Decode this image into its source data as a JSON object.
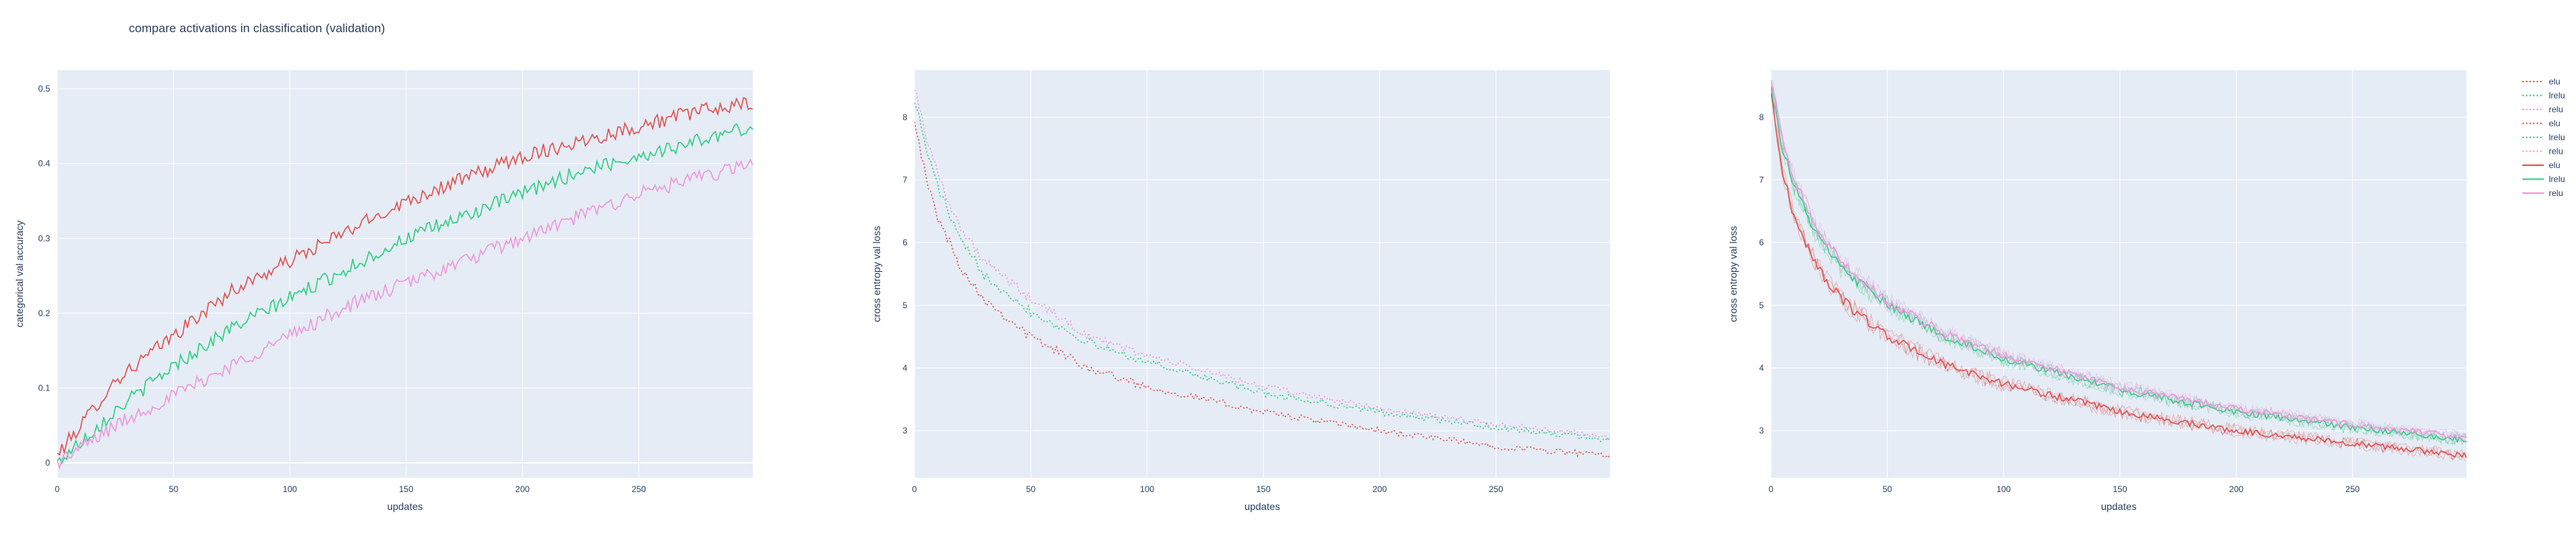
{
  "figure": {
    "title": "compare activations in classification (validation)",
    "plot_bg": "#e5ecf6",
    "grid_color": "#ffffff",
    "colors": {
      "elu": "#e0524f",
      "lrelu": "#2fcf81",
      "relu": "#ee98d9"
    }
  },
  "legend": {
    "items": [
      {
        "label": "elu",
        "series": "elu",
        "dash": "dot"
      },
      {
        "label": "lrelu",
        "series": "lrelu",
        "dash": "dot"
      },
      {
        "label": "relu",
        "series": "relu",
        "dash": "dot"
      },
      {
        "label": "elu",
        "series": "elu",
        "dash": "dot"
      },
      {
        "label": "lrelu",
        "series": "lrelu",
        "dash": "dot"
      },
      {
        "label": "relu",
        "series": "relu",
        "dash": "dot"
      },
      {
        "label": "elu",
        "series": "elu",
        "dash": "solid"
      },
      {
        "label": "lrelu",
        "series": "lrelu",
        "dash": "solid"
      },
      {
        "label": "relu",
        "series": "relu",
        "dash": "solid"
      }
    ]
  },
  "chart_data": [
    {
      "type": "line",
      "title": "",
      "xlabel": "updates",
      "ylabel": "categorical val accuracy",
      "xlim": [
        0,
        299
      ],
      "ylim": [
        -0.02,
        0.525
      ],
      "xticks": [
        0,
        50,
        100,
        150,
        200,
        250
      ],
      "yticks": [
        0,
        0.1,
        0.2,
        0.3,
        0.4,
        0.5
      ],
      "ytick_labels": [
        "0",
        "0.1",
        "0.2",
        "0.3",
        "0.4",
        "0.5"
      ],
      "grid": true,
      "series": [
        {
          "name": "elu",
          "style": "solid",
          "color_key": "elu",
          "x": [
            0,
            25,
            50,
            75,
            100,
            125,
            150,
            175,
            200,
            225,
            250,
            275,
            299
          ],
          "y": [
            0.01,
            0.11,
            0.17,
            0.23,
            0.27,
            0.31,
            0.35,
            0.38,
            0.41,
            0.43,
            0.45,
            0.47,
            0.48
          ]
        },
        {
          "name": "lrelu",
          "style": "solid",
          "color_key": "lrelu",
          "x": [
            0,
            25,
            50,
            75,
            100,
            125,
            150,
            175,
            200,
            225,
            250,
            275,
            299
          ],
          "y": [
            0.0,
            0.07,
            0.13,
            0.18,
            0.22,
            0.26,
            0.3,
            0.33,
            0.36,
            0.39,
            0.41,
            0.43,
            0.45
          ]
        },
        {
          "name": "relu",
          "style": "solid",
          "color_key": "relu",
          "x": [
            0,
            25,
            50,
            75,
            100,
            125,
            150,
            175,
            200,
            225,
            250,
            275,
            299
          ],
          "y": [
            0.0,
            0.05,
            0.09,
            0.13,
            0.17,
            0.21,
            0.24,
            0.27,
            0.3,
            0.33,
            0.36,
            0.38,
            0.4
          ]
        }
      ]
    },
    {
      "type": "line",
      "title": "",
      "xlabel": "updates",
      "ylabel": "cross entropy val loss",
      "xlim": [
        0,
        299
      ],
      "ylim": [
        2.25,
        8.75
      ],
      "xticks": [
        0,
        50,
        100,
        150,
        200,
        250
      ],
      "yticks": [
        3,
        4,
        5,
        6,
        7,
        8
      ],
      "ytick_labels": [
        "3",
        "4",
        "5",
        "6",
        "7",
        "8"
      ],
      "grid": true,
      "series": [
        {
          "name": "elu",
          "style": "dot",
          "color_key": "elu",
          "x": [
            0,
            5,
            10,
            20,
            30,
            50,
            75,
            100,
            150,
            200,
            250,
            299
          ],
          "y": [
            8.0,
            7.0,
            6.4,
            5.6,
            5.1,
            4.5,
            4.0,
            3.7,
            3.3,
            3.0,
            2.75,
            2.6
          ]
        },
        {
          "name": "lrelu",
          "style": "dot",
          "color_key": "lrelu",
          "x": [
            0,
            5,
            10,
            20,
            30,
            50,
            75,
            100,
            150,
            200,
            250,
            299
          ],
          "y": [
            8.3,
            7.5,
            6.9,
            6.0,
            5.5,
            4.9,
            4.4,
            4.1,
            3.6,
            3.3,
            3.05,
            2.85
          ]
        },
        {
          "name": "relu",
          "style": "dot",
          "color_key": "relu",
          "x": [
            0,
            5,
            10,
            20,
            30,
            50,
            75,
            100,
            150,
            200,
            250,
            299
          ],
          "y": [
            8.5,
            7.7,
            7.1,
            6.2,
            5.7,
            5.1,
            4.5,
            4.2,
            3.7,
            3.35,
            3.1,
            2.9
          ]
        }
      ]
    },
    {
      "type": "line",
      "title": "",
      "xlabel": "updates",
      "ylabel": "cross entropy val loss",
      "xlim": [
        0,
        299
      ],
      "ylim": [
        2.25,
        8.75
      ],
      "xticks": [
        0,
        50,
        100,
        150,
        200,
        250
      ],
      "yticks": [
        3,
        4,
        5,
        6,
        7,
        8
      ],
      "ytick_labels": [
        "3",
        "4",
        "5",
        "6",
        "7",
        "8"
      ],
      "grid": true,
      "series": [
        {
          "name": "elu",
          "style": "solid",
          "color_key": "elu",
          "x": [
            0,
            5,
            10,
            20,
            30,
            50,
            75,
            100,
            150,
            200,
            250,
            299
          ],
          "y": [
            8.4,
            7.1,
            6.4,
            5.6,
            5.1,
            4.5,
            4.05,
            3.75,
            3.3,
            3.0,
            2.8,
            2.6
          ]
        },
        {
          "name": "lrelu",
          "style": "solid",
          "color_key": "lrelu",
          "x": [
            0,
            5,
            10,
            20,
            30,
            50,
            75,
            100,
            150,
            200,
            250,
            299
          ],
          "y": [
            8.5,
            7.5,
            6.9,
            6.1,
            5.6,
            5.0,
            4.5,
            4.15,
            3.65,
            3.3,
            3.05,
            2.85
          ]
        },
        {
          "name": "relu",
          "style": "solid",
          "color_key": "relu",
          "x": [
            0,
            5,
            10,
            20,
            30,
            50,
            75,
            100,
            150,
            200,
            250,
            299
          ],
          "y": [
            8.6,
            7.6,
            7.0,
            6.2,
            5.7,
            5.05,
            4.55,
            4.2,
            3.7,
            3.35,
            3.1,
            2.9
          ]
        }
      ]
    }
  ]
}
